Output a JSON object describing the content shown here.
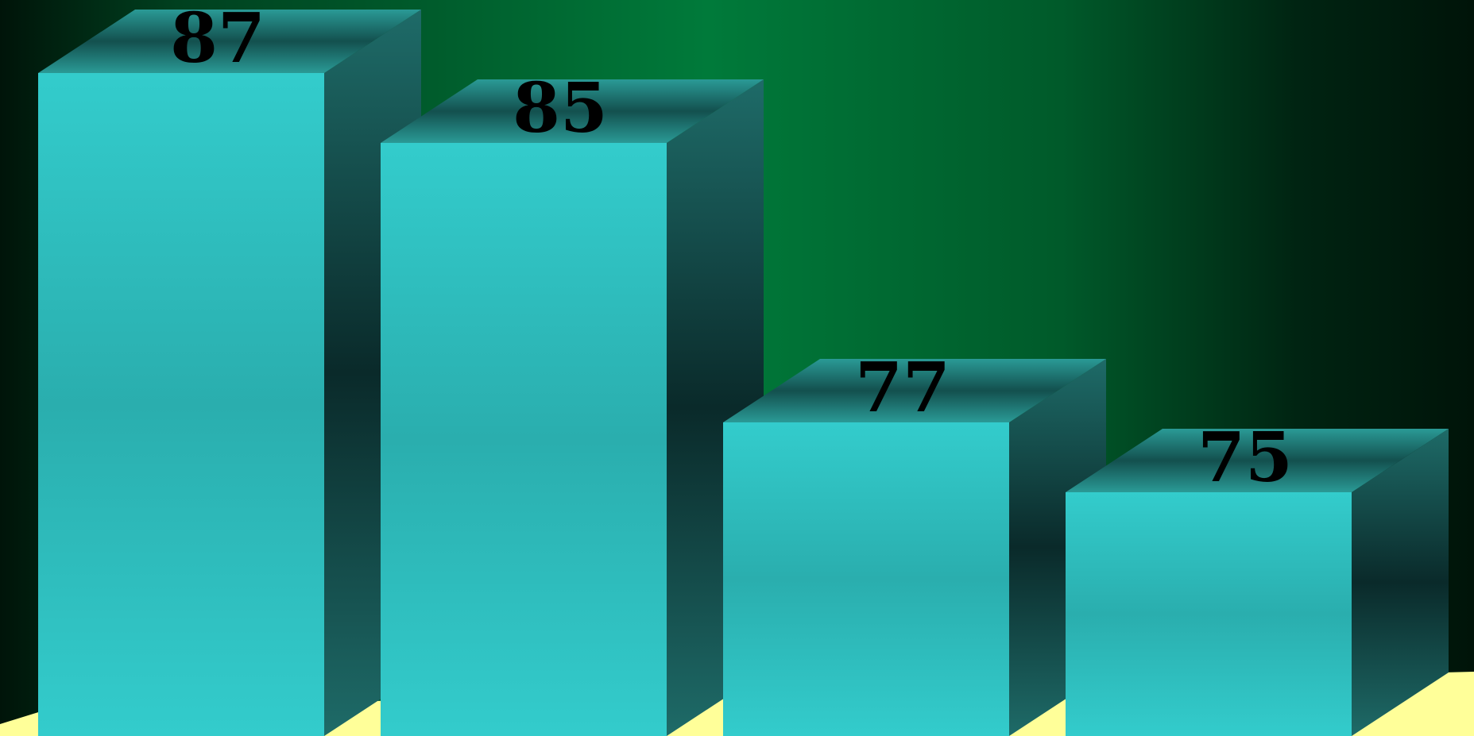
{
  "chart_data": {
    "type": "bar",
    "style": "3d",
    "categories": [
      "",
      "",
      "",
      ""
    ],
    "values": [
      87,
      85,
      77,
      75
    ],
    "data_labels": [
      "87",
      "85",
      "77",
      "75"
    ],
    "title": "",
    "xlabel": "",
    "ylabel": "",
    "ylim": [
      0,
      100
    ],
    "grid": false,
    "legend": "none",
    "colors": {
      "bar_front_light": "#33cccc",
      "bar_front_mid": "#2aaeae",
      "bar_side_light": "#1e6b68",
      "bar_side_dark": "#0a2a2a",
      "bar_top_light": "#2a9a96",
      "bar_top_dark": "#13504e",
      "floor": "#ffff99",
      "background_center": "#007a3a",
      "background_edge": "#001409",
      "label": "#000000"
    }
  }
}
